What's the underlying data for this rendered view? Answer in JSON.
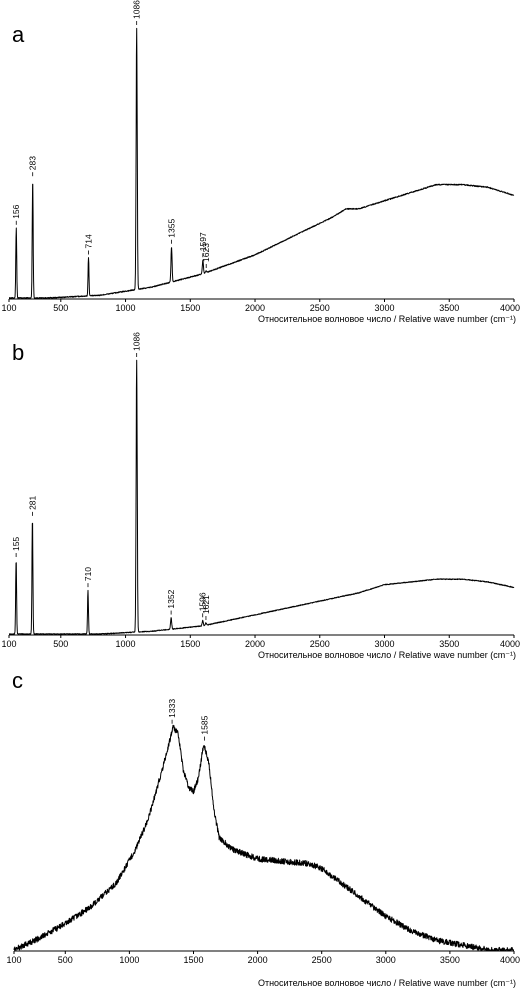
{
  "chart_data": [
    {
      "type": "line",
      "panel": "a",
      "xlabel": "Относительное волновое число / Relative wave number (cm⁻¹)",
      "xlim": [
        100,
        4000
      ],
      "xticks": [
        100,
        500,
        1000,
        1500,
        2000,
        2500,
        3000,
        3500,
        4000
      ],
      "tick_labels": [
        "100",
        "500",
        "1000",
        "1500",
        "2000",
        "2500",
        "3000",
        "3500",
        "4000"
      ],
      "peaks": [
        {
          "x": 156,
          "y": 0.26,
          "label": "156"
        },
        {
          "x": 283,
          "y": 0.44,
          "label": "283"
        },
        {
          "x": 714,
          "y": 0.15,
          "label": "714"
        },
        {
          "x": 1086,
          "y": 1.0,
          "label": "1086"
        },
        {
          "x": 1355,
          "y": 0.19,
          "label": "1355"
        },
        {
          "x": 1597,
          "y": 0.14,
          "label": "1597"
        },
        {
          "x": 1623,
          "y": 0.1,
          "label": "1623"
        }
      ],
      "series": [
        {
          "x": [
            100,
            400,
            800,
            1200,
            1600,
            2000,
            2300,
            2600,
            2700,
            2800,
            3000,
            3200,
            3400,
            3600,
            3800,
            4000
          ],
          "values": [
            0.0,
            0.0,
            0.01,
            0.04,
            0.09,
            0.16,
            0.23,
            0.3,
            0.33,
            0.33,
            0.36,
            0.39,
            0.42,
            0.42,
            0.41,
            0.38
          ]
        }
      ]
    },
    {
      "type": "line",
      "panel": "b",
      "xlabel": "Относительное волновое число / Relative wave number (cm⁻¹)",
      "xlim": [
        100,
        4000
      ],
      "xticks": [
        100,
        500,
        1000,
        1500,
        2000,
        2500,
        3000,
        3500,
        4000
      ],
      "tick_labels": [
        "100",
        "500",
        "1000",
        "1500",
        "2000",
        "2500",
        "3000",
        "3500",
        "4000"
      ],
      "peaks": [
        {
          "x": 155,
          "y": 0.27,
          "label": "155"
        },
        {
          "x": 281,
          "y": 0.42,
          "label": "281"
        },
        {
          "x": 710,
          "y": 0.16,
          "label": "710"
        },
        {
          "x": 1086,
          "y": 1.0,
          "label": "1086"
        },
        {
          "x": 1352,
          "y": 0.06,
          "label": "1352"
        },
        {
          "x": 1596,
          "y": 0.05,
          "label": "1596"
        },
        {
          "x": 1621,
          "y": 0.04,
          "label": "1621"
        }
      ],
      "series": [
        {
          "x": [
            100,
            400,
            800,
            1200,
            1600,
            2000,
            2400,
            2800,
            3000,
            3200,
            3400,
            3600,
            3800,
            4000
          ],
          "values": [
            0.0,
            0.0,
            0.0,
            0.01,
            0.03,
            0.07,
            0.11,
            0.15,
            0.18,
            0.19,
            0.2,
            0.2,
            0.19,
            0.17
          ]
        }
      ]
    },
    {
      "type": "line",
      "panel": "c",
      "xlabel": "Относительное волновое число / Relative wave number (cm⁻¹)",
      "xlim": [
        100,
        4000
      ],
      "xticks": [
        100,
        500,
        1000,
        1500,
        2000,
        2500,
        3000,
        3500,
        4000
      ],
      "tick_labels": [
        "100",
        "500",
        "1000",
        "1500",
        "2000",
        "2500",
        "3000",
        "3500",
        "4000"
      ],
      "peaks": [
        {
          "x": 1333,
          "y": 0.93,
          "label": "1333"
        },
        {
          "x": 1585,
          "y": 0.86,
          "label": "1585"
        }
      ],
      "series": [
        {
          "x": [
            100,
            300,
            500,
            700,
            900,
            1050,
            1150,
            1250,
            1300,
            1340,
            1380,
            1420,
            1460,
            1500,
            1540,
            1580,
            1620,
            1660,
            1700,
            1800,
            2000,
            2200,
            2400,
            2500,
            2600,
            2800,
            3000,
            3200,
            3400,
            3600,
            3800,
            4000
          ],
          "values": [
            0.0,
            0.05,
            0.11,
            0.18,
            0.28,
            0.42,
            0.55,
            0.74,
            0.84,
            0.93,
            0.9,
            0.75,
            0.68,
            0.66,
            0.72,
            0.86,
            0.78,
            0.58,
            0.47,
            0.42,
            0.38,
            0.37,
            0.36,
            0.34,
            0.3,
            0.22,
            0.14,
            0.08,
            0.04,
            0.02,
            0.0,
            0.0
          ]
        }
      ]
    }
  ]
}
